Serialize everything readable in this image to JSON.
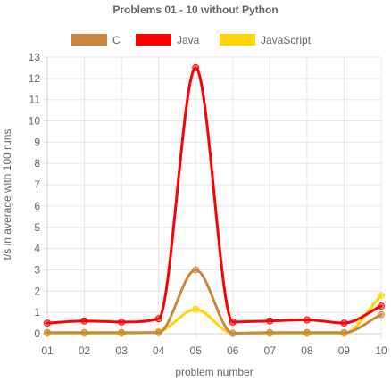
{
  "chart_data": {
    "type": "line",
    "title": "Problems 01 - 10 without Python",
    "xlabel": "problem number",
    "ylabel": "t/s in average with 100 runs",
    "categories": [
      "01",
      "02",
      "03",
      "04",
      "05",
      "06",
      "07",
      "08",
      "09",
      "10"
    ],
    "y_ticks": [
      "0",
      "1",
      "2",
      "3",
      "4",
      "5",
      "6",
      "7",
      "8",
      "9",
      "10",
      "11",
      "12",
      "13"
    ],
    "ylim": [
      0,
      13
    ],
    "grid": true,
    "legend_position": "top",
    "series": [
      {
        "name": "C",
        "color": "#cd853f",
        "values": [
          0.05,
          0.05,
          0.05,
          0.05,
          3.0,
          0.02,
          0.05,
          0.05,
          0.05,
          0.9
        ]
      },
      {
        "name": "Java",
        "color": "#ff0000",
        "values": [
          0.5,
          0.6,
          0.55,
          0.7,
          12.5,
          0.55,
          0.6,
          0.65,
          0.5,
          1.3
        ]
      },
      {
        "name": "JavaScript",
        "color": "#ffd700",
        "values": [
          0.02,
          0.02,
          0.02,
          0.1,
          1.15,
          0.02,
          0.02,
          0.02,
          0.02,
          1.8
        ]
      }
    ]
  }
}
